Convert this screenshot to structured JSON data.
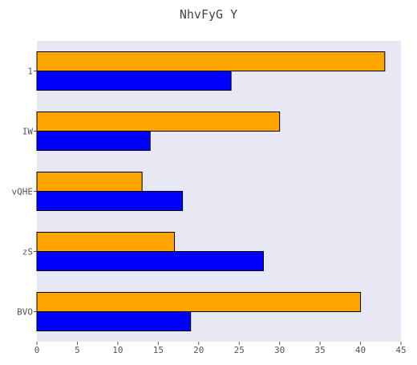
{
  "chart_data": {
    "type": "bar",
    "orientation": "horizontal",
    "title": "NhvFyG Y",
    "xlabel": "",
    "ylabel": "",
    "categories": [
      "1",
      "IW",
      "vQHE",
      "zS",
      "BVO"
    ],
    "series": [
      {
        "color": "#ffa500",
        "values": [
          43,
          30,
          13,
          17,
          40
        ]
      },
      {
        "color": "#0000ff",
        "values": [
          24,
          14,
          18,
          28,
          19
        ]
      }
    ],
    "xlim": [
      0,
      45
    ],
    "xticks": [
      0,
      5,
      10,
      15,
      20,
      25,
      30,
      35,
      40,
      45
    ],
    "grid": false,
    "legend": "none",
    "colors": {
      "plot_background": "#e8e8f4",
      "bar_edge": "#000000",
      "tick_text": "#555555"
    }
  }
}
